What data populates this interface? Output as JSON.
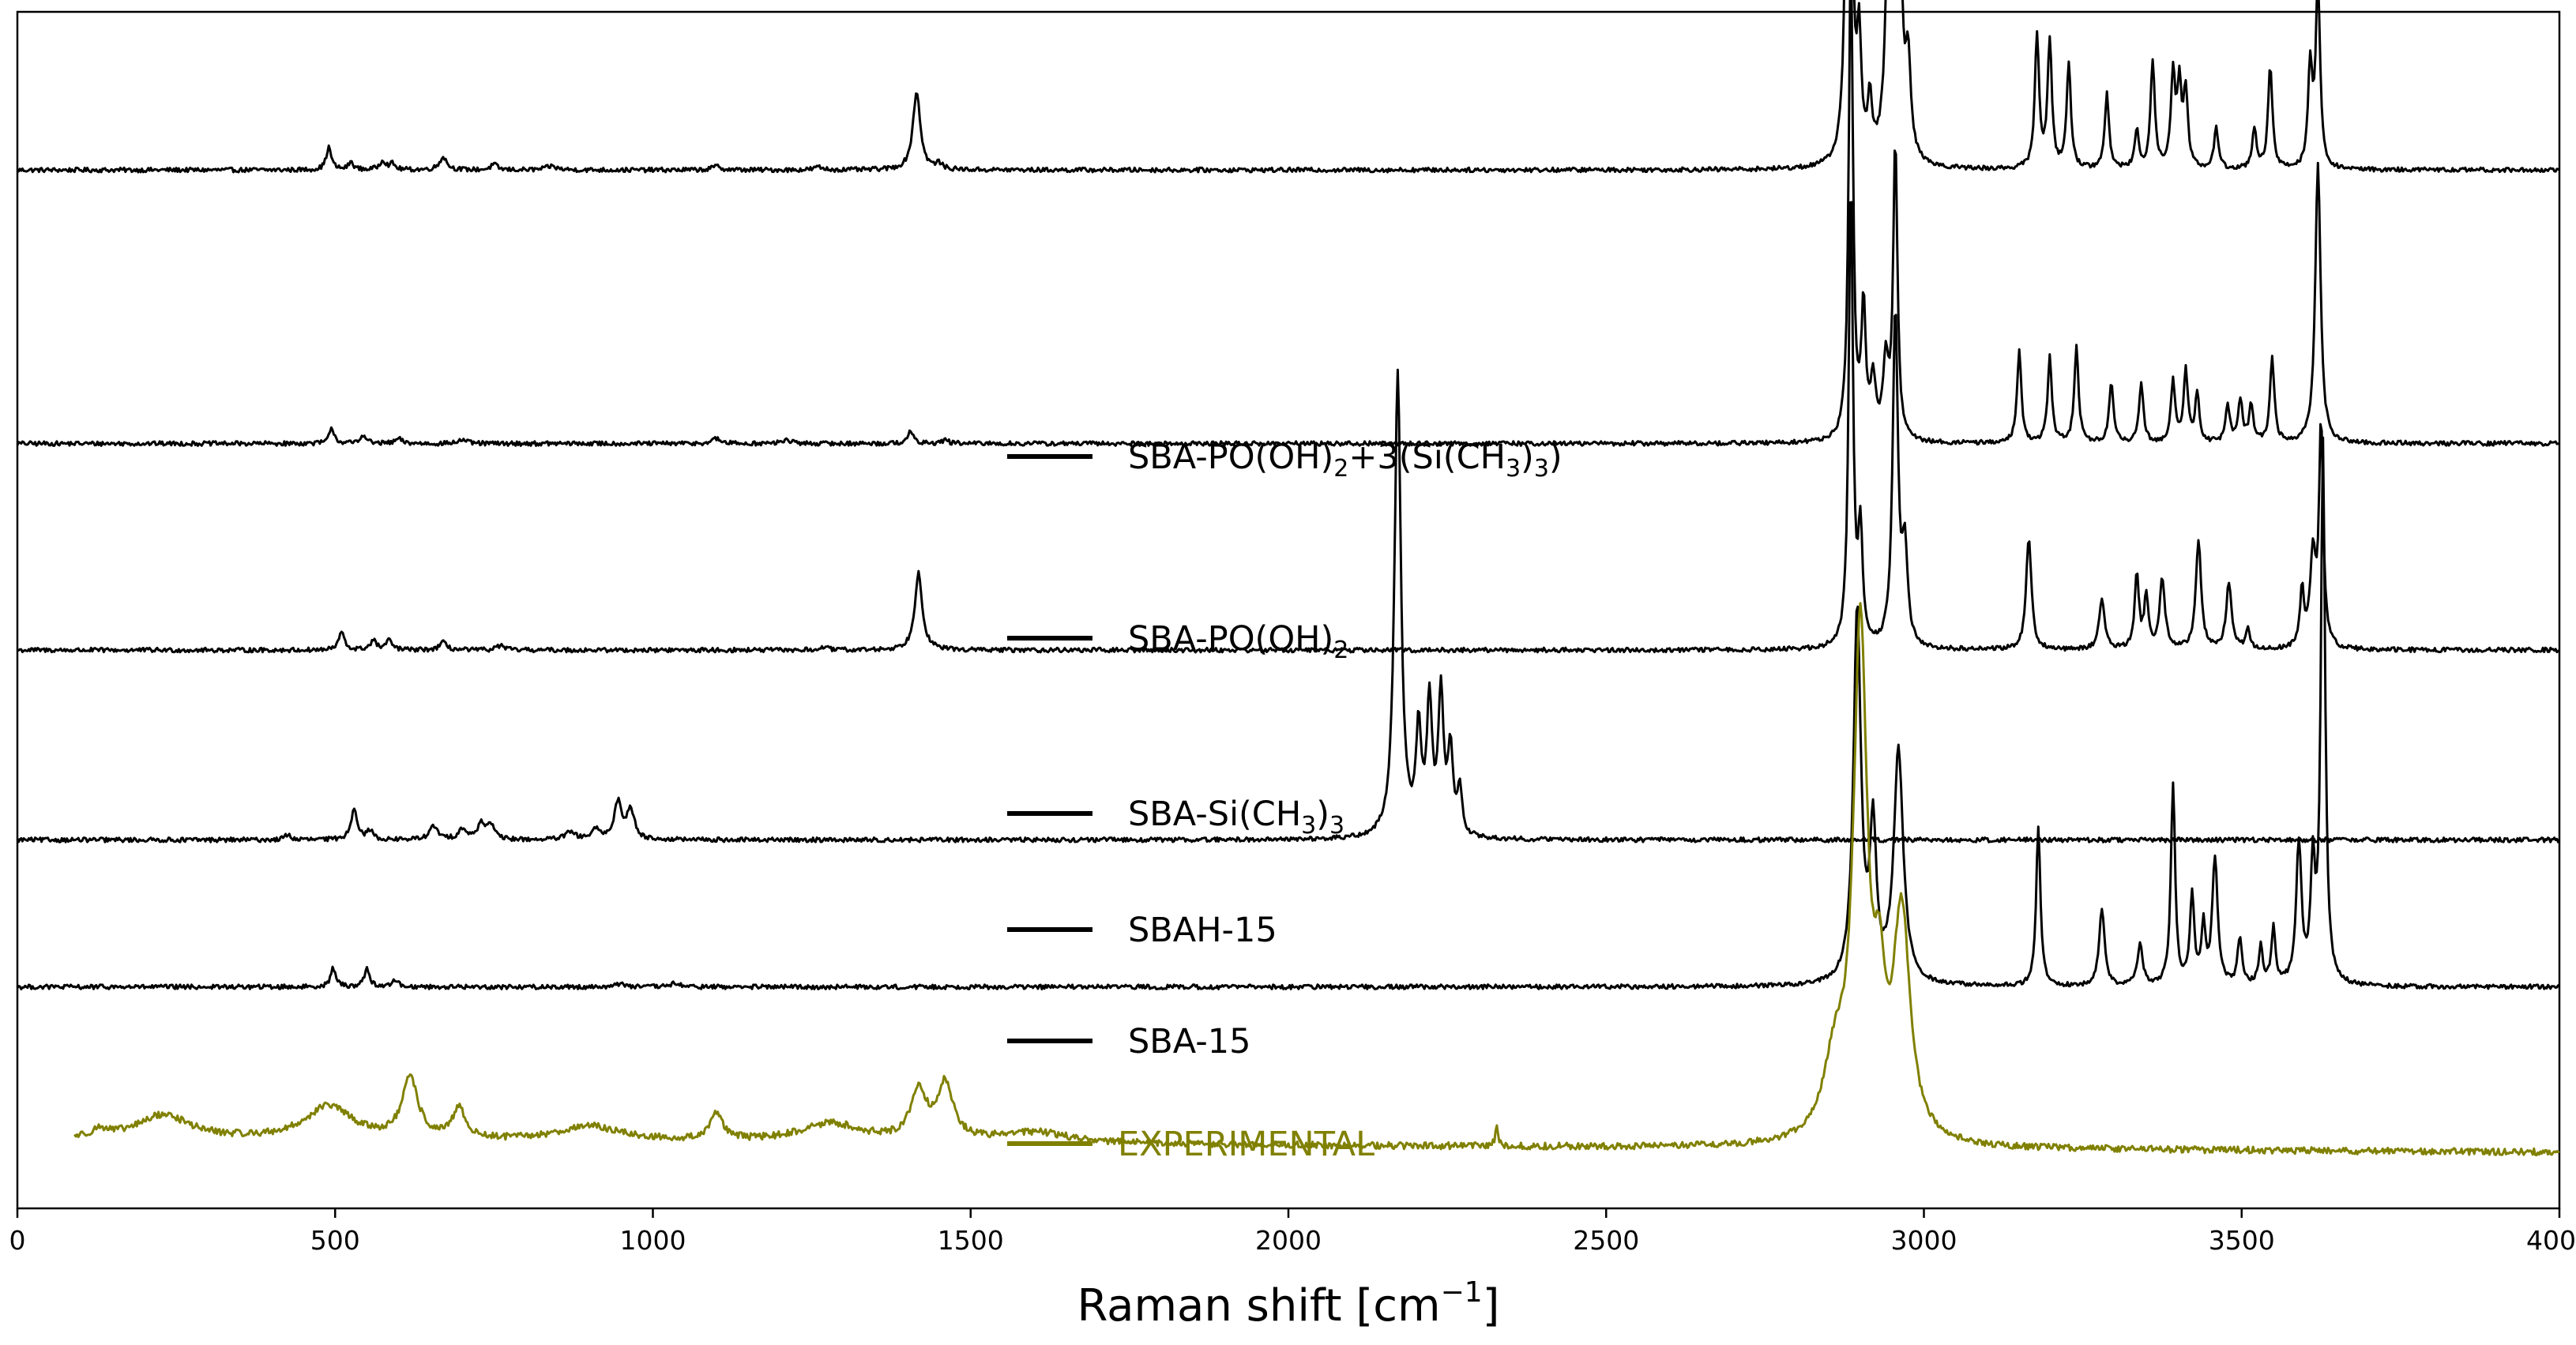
{
  "chart_data": {
    "type": "line",
    "xlabel_main": "Raman shift [cm",
    "xlabel_sup": "−1",
    "xlabel_tail": "]",
    "xlim": [
      0,
      4000
    ],
    "x_ticks": [
      0,
      500,
      1000,
      1500,
      2000,
      2500,
      3000,
      3500,
      4000
    ],
    "x_tick_labels": [
      "0",
      "500",
      "1000",
      "1500",
      "2000",
      "2500",
      "3000",
      "3500",
      "4000"
    ],
    "y_ticks_shown": false,
    "grid": false,
    "note_values": "intensities in arbitrary units; each spectrum is vertically offset; baseline is the offset level",
    "series": [
      {
        "name": "SBA-PO(OH)2+3(Si(CH3)3)",
        "label_parts": [
          [
            "SBA-PO(OH)",
            "n"
          ],
          [
            "2",
            "sub"
          ],
          [
            "+3(Si(CH",
            "n"
          ],
          [
            "3",
            "sub"
          ],
          [
            ")",
            "n"
          ],
          [
            "3",
            "sub"
          ],
          [
            ")",
            "n"
          ]
        ],
        "color": "#000000",
        "x_range": [
          0,
          4000
        ],
        "baseline": 4.05,
        "noise": 0.012,
        "peaks": [
          [
            490,
            0.12,
            5
          ],
          [
            525,
            0.04,
            5
          ],
          [
            575,
            0.05,
            6
          ],
          [
            590,
            0.03,
            5
          ],
          [
            670,
            0.07,
            7
          ],
          [
            750,
            0.03,
            6
          ],
          [
            840,
            0.02,
            10
          ],
          [
            1100,
            0.02,
            8
          ],
          [
            1260,
            0.015,
            8
          ],
          [
            1415,
            0.42,
            7
          ],
          [
            1450,
            0.03,
            6
          ],
          [
            2882,
            4.0,
            4
          ],
          [
            2898,
            0.6,
            4
          ],
          [
            2915,
            0.3,
            4
          ],
          [
            2948,
            3.05,
            5
          ],
          [
            2962,
            1.0,
            5
          ],
          [
            2975,
            0.5,
            5
          ],
          [
            3178,
            0.72,
            4
          ],
          [
            3198,
            0.68,
            4
          ],
          [
            3228,
            0.56,
            4
          ],
          [
            3288,
            0.4,
            4
          ],
          [
            3335,
            0.2,
            4
          ],
          [
            3360,
            0.58,
            4
          ],
          [
            3392,
            0.5,
            4
          ],
          [
            3402,
            0.42,
            4
          ],
          [
            3412,
            0.4,
            4
          ],
          [
            3460,
            0.22,
            4
          ],
          [
            3520,
            0.22,
            4
          ],
          [
            3545,
            0.55,
            4
          ],
          [
            3608,
            0.55,
            4
          ],
          [
            3620,
            1.0,
            4
          ]
        ]
      },
      {
        "name": "SBA-PO(OH)2",
        "label_parts": [
          [
            "SBA-PO(OH)",
            "n"
          ],
          [
            "2",
            "sub"
          ]
        ],
        "color": "#000000",
        "x_range": [
          0,
          4000
        ],
        "baseline": 2.58,
        "noise": 0.012,
        "peaks": [
          [
            495,
            0.08,
            5
          ],
          [
            545,
            0.05,
            5
          ],
          [
            600,
            0.025,
            6
          ],
          [
            700,
            0.02,
            8
          ],
          [
            1100,
            0.025,
            8
          ],
          [
            1210,
            0.02,
            8
          ],
          [
            1405,
            0.06,
            6
          ],
          [
            1460,
            0.02,
            6
          ],
          [
            2885,
            2.6,
            4
          ],
          [
            2905,
            0.7,
            4
          ],
          [
            2920,
            0.3,
            5
          ],
          [
            2940,
            0.4,
            5
          ],
          [
            2955,
            1.6,
            4
          ],
          [
            3150,
            0.5,
            4
          ],
          [
            3198,
            0.46,
            4
          ],
          [
            3240,
            0.52,
            4
          ],
          [
            3295,
            0.33,
            4
          ],
          [
            3342,
            0.33,
            4
          ],
          [
            3392,
            0.33,
            4
          ],
          [
            3412,
            0.38,
            4
          ],
          [
            3430,
            0.26,
            4
          ],
          [
            3478,
            0.2,
            4
          ],
          [
            3498,
            0.22,
            4
          ],
          [
            3515,
            0.2,
            4
          ],
          [
            3548,
            0.45,
            4
          ],
          [
            3620,
            1.5,
            5
          ]
        ]
      },
      {
        "name": "SBA-Si(CH3)3",
        "label_parts": [
          [
            "SBA-Si(CH",
            "n"
          ],
          [
            "3",
            "sub"
          ],
          [
            ")",
            "n"
          ],
          [
            "3",
            "sub"
          ]
        ],
        "color": "#000000",
        "x_range": [
          0,
          4000
        ],
        "baseline": 1.47,
        "noise": 0.012,
        "peaks": [
          [
            510,
            0.1,
            5
          ],
          [
            560,
            0.05,
            6
          ],
          [
            585,
            0.05,
            6
          ],
          [
            670,
            0.04,
            7
          ],
          [
            760,
            0.025,
            7
          ],
          [
            1270,
            0.015,
            7
          ],
          [
            1418,
            0.42,
            7
          ],
          [
            2885,
            2.5,
            4
          ],
          [
            2900,
            0.6,
            4
          ],
          [
            2955,
            1.8,
            5
          ],
          [
            2970,
            0.5,
            5
          ],
          [
            3165,
            0.6,
            5
          ],
          [
            3280,
            0.27,
            5
          ],
          [
            3335,
            0.4,
            4
          ],
          [
            3350,
            0.28,
            4
          ],
          [
            3375,
            0.38,
            5
          ],
          [
            3432,
            0.58,
            5
          ],
          [
            3480,
            0.36,
            5
          ],
          [
            3510,
            0.1,
            4
          ],
          [
            3595,
            0.3,
            4
          ],
          [
            3612,
            0.48,
            5
          ],
          [
            3625,
            1.2,
            4
          ]
        ]
      },
      {
        "name": "SBAH-15",
        "label_parts": [
          [
            "SBAH-15",
            "n"
          ]
        ],
        "color": "#000000",
        "x_range": [
          0,
          4000
        ],
        "baseline": 0.45,
        "noise": 0.012,
        "peaks": [
          [
            425,
            0.03,
            5
          ],
          [
            530,
            0.17,
            6
          ],
          [
            555,
            0.05,
            5
          ],
          [
            655,
            0.07,
            8
          ],
          [
            700,
            0.06,
            7
          ],
          [
            730,
            0.09,
            7
          ],
          [
            745,
            0.08,
            6
          ],
          [
            870,
            0.04,
            9
          ],
          [
            910,
            0.05,
            8
          ],
          [
            945,
            0.2,
            7
          ],
          [
            965,
            0.16,
            7
          ],
          [
            2172,
            2.5,
            6
          ],
          [
            2205,
            0.55,
            5
          ],
          [
            2222,
            0.7,
            5
          ],
          [
            2240,
            0.75,
            5
          ],
          [
            2255,
            0.45,
            5
          ],
          [
            2270,
            0.25,
            4
          ]
        ]
      },
      {
        "name": "SBA-15",
        "label_parts": [
          [
            "SBA-15",
            "n"
          ]
        ],
        "color": "#000000",
        "x_range": [
          0,
          4000
        ],
        "baseline": -0.34,
        "noise": 0.012,
        "peaks": [
          [
            497,
            0.1,
            5
          ],
          [
            550,
            0.1,
            5
          ],
          [
            595,
            0.04,
            5
          ],
          [
            950,
            0.02,
            8
          ],
          [
            1035,
            0.02,
            8
          ],
          [
            2895,
            2.0,
            7
          ],
          [
            2920,
            0.8,
            6
          ],
          [
            2960,
            1.25,
            9
          ],
          [
            3180,
            0.85,
            4
          ],
          [
            3280,
            0.42,
            5
          ],
          [
            3340,
            0.22,
            5
          ],
          [
            3392,
            1.08,
            4
          ],
          [
            3422,
            0.48,
            4
          ],
          [
            3440,
            0.3,
            4
          ],
          [
            3458,
            0.68,
            5
          ],
          [
            3497,
            0.25,
            4
          ],
          [
            3530,
            0.2,
            4
          ],
          [
            3550,
            0.3,
            4
          ],
          [
            3590,
            0.75,
            5
          ],
          [
            3612,
            0.6,
            4
          ],
          [
            3628,
            2.9,
            4
          ]
        ]
      },
      {
        "name": "EXPERIMENTAL",
        "label_parts": [
          [
            "EXPERIMENTAL",
            "n"
          ]
        ],
        "color": "#808000",
        "x_range": [
          90,
          4000
        ],
        "baseline": -1.16,
        "noise": 0.018,
        "peaks": [
          [
            130,
            0.04,
            15
          ],
          [
            230,
            0.13,
            50
          ],
          [
            490,
            0.18,
            45
          ],
          [
            618,
            0.32,
            15
          ],
          [
            695,
            0.16,
            12
          ],
          [
            900,
            0.08,
            60
          ],
          [
            1100,
            0.15,
            12
          ],
          [
            1280,
            0.1,
            60
          ],
          [
            1418,
            0.26,
            15
          ],
          [
            1460,
            0.3,
            15
          ],
          [
            1600,
            0.06,
            70
          ],
          [
            2328,
            0.1,
            3
          ],
          [
            2860,
            0.4,
            22
          ],
          [
            2900,
            2.7,
            13
          ],
          [
            2930,
            0.6,
            10
          ],
          [
            2965,
            1.2,
            16
          ]
        ],
        "offset_slope": -0.07
      }
    ]
  }
}
